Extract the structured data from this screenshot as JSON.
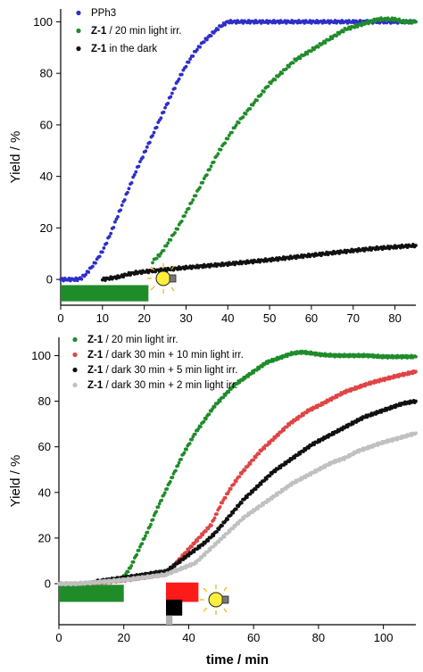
{
  "chart_data": [
    {
      "type": "scatter",
      "ylabel": "Yield / %",
      "xlabel": "",
      "xlim": [
        0,
        85
      ],
      "ylim": [
        -10,
        105
      ],
      "xticks": [
        "0",
        "10",
        "20",
        "30",
        "40",
        "50",
        "60",
        "70",
        "80"
      ],
      "yticks": [
        "0",
        "20",
        "40",
        "60",
        "80",
        "100"
      ],
      "legend_position": "top-left",
      "series": [
        {
          "name_bold": "",
          "name_text": "PPh3",
          "color": "#2e2ec9",
          "points": [
            [
              0,
              0
            ],
            [
              4,
              0
            ],
            [
              5,
              0.6
            ],
            [
              6,
              2
            ],
            [
              8,
              6
            ],
            [
              10,
              11
            ],
            [
              12,
              18
            ],
            [
              14,
              26
            ],
            [
              16,
              34
            ],
            [
              18,
              42
            ],
            [
              20,
              49
            ],
            [
              22,
              56
            ],
            [
              24,
              63
            ],
            [
              26,
              70
            ],
            [
              28,
              77
            ],
            [
              30,
              83
            ],
            [
              32,
              88
            ],
            [
              34,
              92
            ],
            [
              36,
              95
            ],
            [
              38,
              98
            ],
            [
              40,
              100
            ],
            [
              45,
              100
            ],
            [
              50,
              100
            ],
            [
              55,
              100
            ],
            [
              60,
              100
            ],
            [
              65,
              100
            ],
            [
              70,
              100
            ],
            [
              75,
              100
            ],
            [
              80,
              100
            ],
            [
              85,
              100
            ]
          ]
        },
        {
          "name_bold": "Z-1",
          "name_text": " / 20 min light irr.",
          "color": "#1f8c2a",
          "points": [
            [
              22,
              7
            ],
            [
              24,
              10
            ],
            [
              26,
              15
            ],
            [
              28,
              20
            ],
            [
              30,
              26
            ],
            [
              32,
              32
            ],
            [
              34,
              38
            ],
            [
              36,
              44
            ],
            [
              38,
              50
            ],
            [
              40,
              55
            ],
            [
              42,
              60
            ],
            [
              44,
              64
            ],
            [
              46,
              68
            ],
            [
              48,
              72
            ],
            [
              50,
              76
            ],
            [
              52,
              79
            ],
            [
              54,
              82
            ],
            [
              56,
              85
            ],
            [
              58,
              87
            ],
            [
              60,
              89
            ],
            [
              62,
              91
            ],
            [
              64,
              93
            ],
            [
              66,
              95
            ],
            [
              68,
              97
            ],
            [
              70,
              98
            ],
            [
              72,
              99
            ],
            [
              74,
              100
            ],
            [
              76,
              101
            ],
            [
              78,
              101
            ],
            [
              80,
              101
            ],
            [
              82,
              100
            ],
            [
              85,
              100
            ]
          ]
        },
        {
          "name_bold": "Z-1",
          "name_text": " in the dark",
          "color": "#111111",
          "points": [
            [
              10,
              0
            ],
            [
              12,
              0.5
            ],
            [
              14,
              1
            ],
            [
              16,
              2
            ],
            [
              18,
              2.6
            ],
            [
              20,
              3
            ],
            [
              25,
              3.8
            ],
            [
              30,
              4.6
            ],
            [
              35,
              5.3
            ],
            [
              40,
              6
            ],
            [
              45,
              6.8
            ],
            [
              50,
              7.6
            ],
            [
              55,
              8.5
            ],
            [
              60,
              9.4
            ],
            [
              65,
              10.3
            ],
            [
              70,
              11.2
            ],
            [
              75,
              12
            ],
            [
              80,
              12.6
            ],
            [
              85,
              13.2
            ]
          ]
        }
      ],
      "bars": [
        {
          "label": "20 min light irradiation",
          "x_start": 0,
          "x_end": 21,
          "color": "#1f8c2a"
        }
      ]
    },
    {
      "type": "scatter",
      "ylabel": "Yield / %",
      "xlabel": "time / min",
      "xlim": [
        0,
        110
      ],
      "ylim": [
        -18,
        108
      ],
      "xticks": [
        "0",
        "20",
        "40",
        "60",
        "80",
        "100"
      ],
      "yticks": [
        "0",
        "20",
        "40",
        "60",
        "80",
        "100"
      ],
      "legend_position": "top-left",
      "series": [
        {
          "name_bold": "Z-1",
          "name_text": " / 20 min light irr.",
          "color": "#1f8c2a",
          "points": [
            [
              10,
              0.4
            ],
            [
              13,
              0.8
            ],
            [
              16,
              1.2
            ],
            [
              18,
              1.6
            ],
            [
              20,
              3
            ],
            [
              22,
              7
            ],
            [
              24,
              13
            ],
            [
              26,
              19
            ],
            [
              28,
              25
            ],
            [
              30,
              32
            ],
            [
              32,
              38
            ],
            [
              34,
              44
            ],
            [
              36,
              50
            ],
            [
              38,
              56
            ],
            [
              40,
              61
            ],
            [
              42,
              66
            ],
            [
              44,
              70
            ],
            [
              46,
              74
            ],
            [
              48,
              78
            ],
            [
              50,
              81
            ],
            [
              52,
              84
            ],
            [
              54,
              87
            ],
            [
              56,
              89
            ],
            [
              58,
              91
            ],
            [
              60,
              93
            ],
            [
              62,
              95
            ],
            [
              64,
              97
            ],
            [
              66,
              98
            ],
            [
              68,
              99
            ],
            [
              70,
              100
            ],
            [
              72,
              101
            ],
            [
              75,
              101.5
            ],
            [
              78,
              101
            ],
            [
              80,
              100.5
            ],
            [
              85,
              100
            ],
            [
              90,
              100
            ],
            [
              95,
              100
            ],
            [
              100,
              99.5
            ],
            [
              105,
              99.5
            ],
            [
              110,
              99.5
            ]
          ]
        },
        {
          "name_bold": "Z-1",
          "name_text": " / dark 30 min + 10 min light irr.",
          "color": "#e04545",
          "points": [
            [
              10,
              0.3
            ],
            [
              15,
              0.8
            ],
            [
              20,
              1.5
            ],
            [
              25,
              2.5
            ],
            [
              30,
              3.6
            ],
            [
              33,
              4.2
            ],
            [
              47,
              26
            ],
            [
              50,
              35
            ],
            [
              53,
              42
            ],
            [
              56,
              48
            ],
            [
              59,
              53
            ],
            [
              62,
              58
            ],
            [
              65,
              62
            ],
            [
              68,
              66
            ],
            [
              71,
              70
            ],
            [
              74,
              73
            ],
            [
              77,
              76
            ],
            [
              80,
              78
            ],
            [
              84,
              81
            ],
            [
              88,
              84
            ],
            [
              92,
              86
            ],
            [
              96,
              88
            ],
            [
              100,
              89.5
            ],
            [
              104,
              91
            ],
            [
              110,
              93
            ]
          ]
        },
        {
          "name_bold": "Z-1",
          "name_text": " / dark 30 min + 5 min light irr.",
          "color": "#111111",
          "points": [
            [
              12,
              1
            ],
            [
              15,
              1.6
            ],
            [
              18,
              2.2
            ],
            [
              22,
              3
            ],
            [
              26,
              3.8
            ],
            [
              30,
              4.8
            ],
            [
              33,
              5.3
            ],
            [
              45,
              18
            ],
            [
              48,
              22
            ],
            [
              51,
              27
            ],
            [
              54,
              32
            ],
            [
              57,
              37
            ],
            [
              60,
              41
            ],
            [
              63,
              45
            ],
            [
              66,
              49
            ],
            [
              70,
              53
            ],
            [
              74,
              57
            ],
            [
              78,
              61
            ],
            [
              82,
              64
            ],
            [
              86,
              67
            ],
            [
              90,
              70
            ],
            [
              94,
              73
            ],
            [
              98,
              75
            ],
            [
              102,
              77
            ],
            [
              106,
              79
            ],
            [
              110,
              80
            ]
          ]
        },
        {
          "name_bold": "Z-1",
          "name_text": " / dark 30 min + 2 min light irr.",
          "color": "#c0c0c0",
          "points": [
            [
              0,
              0
            ],
            [
              5,
              0
            ],
            [
              10,
              0.4
            ],
            [
              15,
              1
            ],
            [
              20,
              1.6
            ],
            [
              25,
              2.5
            ],
            [
              30,
              3.4
            ],
            [
              33,
              4
            ],
            [
              42,
              9
            ],
            [
              45,
              13
            ],
            [
              48,
              17
            ],
            [
              51,
              21
            ],
            [
              54,
              25
            ],
            [
              57,
              29
            ],
            [
              60,
              32
            ],
            [
              64,
              36
            ],
            [
              68,
              40
            ],
            [
              72,
              44
            ],
            [
              76,
              47
            ],
            [
              80,
              50
            ],
            [
              84,
              53
            ],
            [
              88,
              55
            ],
            [
              92,
              58
            ],
            [
              96,
              60
            ],
            [
              100,
              62
            ],
            [
              104,
              63.5
            ],
            [
              110,
              66
            ]
          ]
        }
      ],
      "bars": [
        {
          "label": "20 min light irradiation",
          "x_start": 0,
          "x_end": 20,
          "color": "#1f8c2a"
        },
        {
          "label": "10 min light irradiation",
          "x_start": 33,
          "x_end": 43,
          "color": "#ff1a1a"
        },
        {
          "label": "5 min light irradiation",
          "x_start": 33,
          "x_end": 38,
          "color": "#000000"
        },
        {
          "label": "2 min light irradiation",
          "x_start": 33,
          "x_end": 35,
          "color": "#b0b0b0"
        }
      ]
    }
  ]
}
